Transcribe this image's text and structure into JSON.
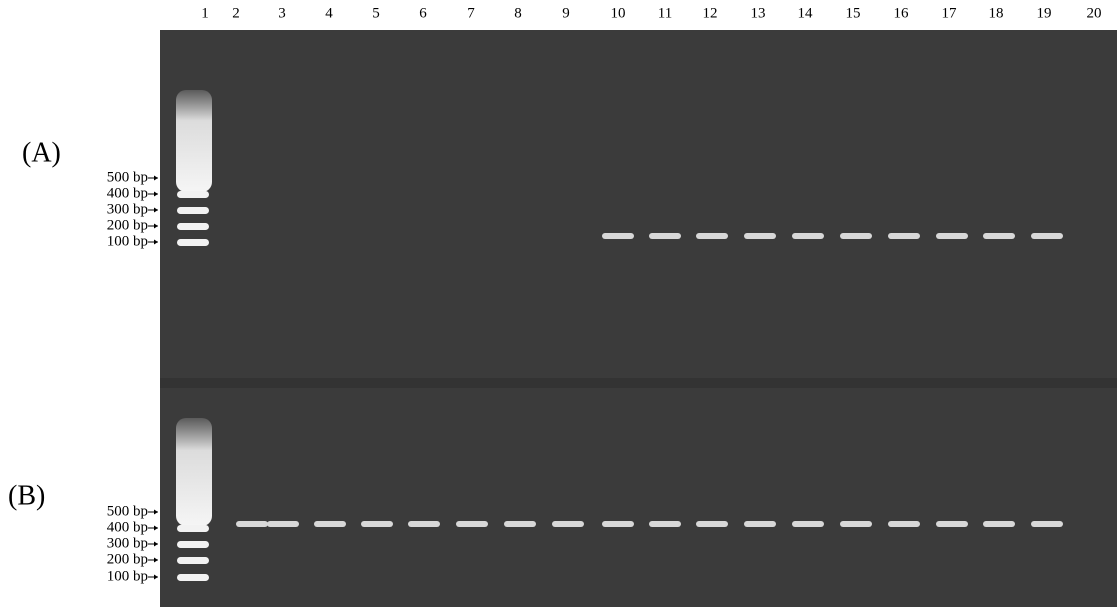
{
  "lane_numbers": [
    1,
    2,
    3,
    4,
    5,
    6,
    7,
    8,
    9,
    10,
    11,
    12,
    13,
    14,
    15,
    16,
    17,
    18,
    19,
    20
  ],
  "panels": [
    {
      "label": "(A)",
      "markers": [
        "500 bp",
        "400 bp",
        "300 bp",
        "200 bp",
        "100 bp"
      ]
    },
    {
      "label": "(B)",
      "markers": [
        "500 bp",
        "400 bp",
        "300 bp",
        "200 bp",
        "100 bp"
      ]
    }
  ]
}
